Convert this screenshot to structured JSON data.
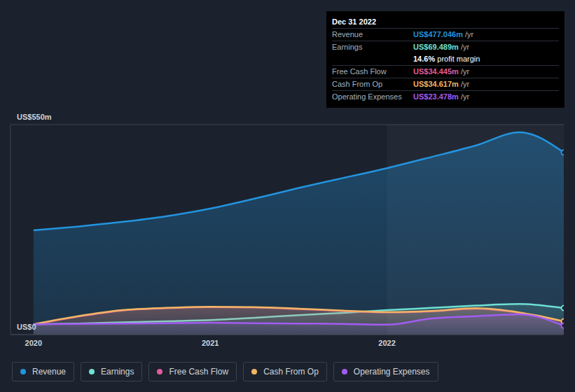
{
  "chart_data": {
    "type": "area",
    "x": [
      2020,
      2020.25,
      2020.5,
      2020.75,
      2021,
      2021.25,
      2021.5,
      2021.75,
      2022,
      2022.25,
      2022.5,
      2022.75,
      2023
    ],
    "xlim": [
      2019.87,
      2023
    ],
    "xticks": [
      2020,
      2021,
      2022
    ],
    "ylim": [
      0,
      550
    ],
    "yticks": [
      {
        "value": 0,
        "label": "US$0"
      },
      {
        "value": 550,
        "label": "US$550m"
      }
    ],
    "grid": true,
    "series": [
      {
        "name": "Revenue",
        "color": "#2394df",
        "values": [
          273,
          283,
          295,
          310,
          330,
          356,
          384,
          410,
          436,
          465,
          495,
          530,
          477.046
        ]
      },
      {
        "name": "Earnings",
        "color": "#6ee0d3",
        "values": [
          27,
          29,
          32,
          35,
          38,
          44,
          51,
          57,
          64,
          70,
          76,
          80,
          69.489
        ]
      },
      {
        "name": "Free Cash Flow",
        "color": "#e05c9a",
        "values": [
          26,
          47,
          63,
          69,
          72,
          71,
          67,
          62,
          58,
          61,
          68,
          57,
          34.445
        ]
      },
      {
        "name": "Cash From Op",
        "color": "#f2b564",
        "values": [
          27,
          48,
          64,
          70,
          73,
          72,
          68,
          63,
          59,
          62,
          69,
          58,
          34.617
        ]
      },
      {
        "name": "Operating Expenses",
        "color": "#a25cf2",
        "values": [
          27,
          28,
          29,
          30,
          31,
          30,
          29,
          28,
          26,
          42,
          48,
          53,
          23.478
        ]
      }
    ],
    "annotations": {
      "title": "Dec 31 2022",
      "rows": [
        {
          "label": "Revenue",
          "value": "US$477.046m",
          "unit": "/yr"
        },
        {
          "label": "Earnings",
          "value": "US$69.489m",
          "unit": "/yr"
        },
        {
          "value": "14.6%",
          "unit": "profit margin"
        },
        {
          "label": "Free Cash Flow",
          "value": "US$34.445m",
          "unit": "/yr"
        },
        {
          "label": "Cash From Op",
          "value": "US$34.617m",
          "unit": "/yr"
        },
        {
          "label": "Operating Expenses",
          "value": "US$23.478m",
          "unit": "/yr"
        }
      ]
    }
  }
}
